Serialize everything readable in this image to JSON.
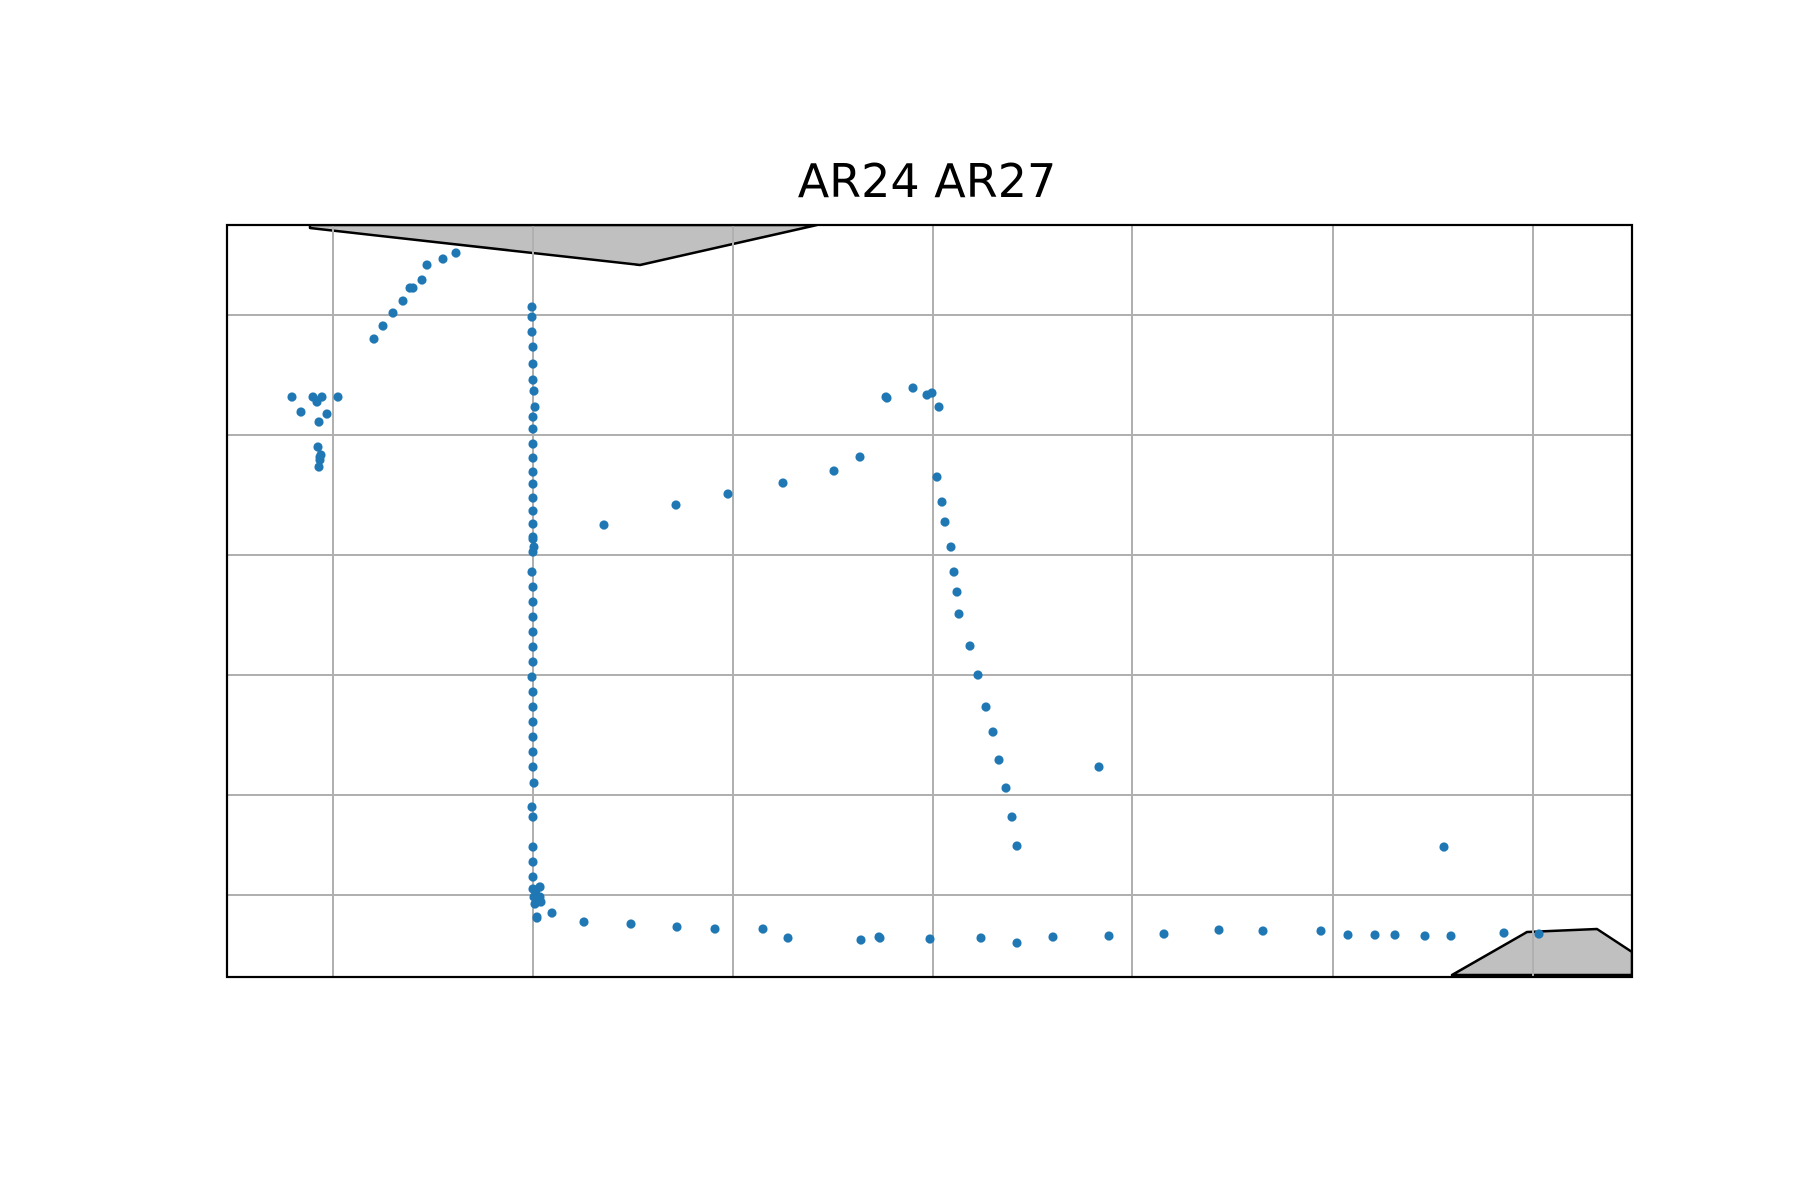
{
  "chart_data": {
    "type": "scatter",
    "title": "AR24 AR27",
    "xlim": [
      0,
      1405
    ],
    "ylim": [
      0,
      750
    ],
    "grid": true,
    "grid_x": [
      106,
      306,
      506,
      706,
      905,
      1106,
      1306
    ],
    "grid_y": [
      90,
      210,
      330,
      450,
      570,
      670
    ],
    "colors": {
      "points": "#1f77b4",
      "land_fill": "#c0c0c0",
      "land_edge": "#000000",
      "grid": "#b0b0b0",
      "frame": "#000000"
    },
    "land": [
      {
        "points": [
          [
            83,
            0
          ],
          [
            413,
            0
          ],
          [
            590,
            0
          ],
          [
            413,
            40
          ],
          [
            83,
            3
          ]
        ]
      },
      {
        "points": [
          [
            1225,
            750
          ],
          [
            1300,
            707
          ],
          [
            1370,
            704
          ],
          [
            1405,
            727
          ],
          [
            1405,
            750
          ]
        ]
      }
    ],
    "series": [
      {
        "x": [
          65,
          74,
          86,
          90,
          92,
          91,
          93,
          93,
          92,
          94,
          95,
          100,
          111,
          147,
          156,
          166,
          176,
          183,
          186,
          195,
          200,
          216,
          229,
          305,
          305,
          305,
          306,
          306,
          306,
          307,
          308,
          306,
          306,
          306,
          306,
          306,
          306,
          306,
          306,
          306,
          306,
          306,
          305,
          306,
          306,
          306,
          306,
          306,
          306,
          305,
          306,
          306,
          306,
          306,
          306,
          306,
          307,
          305,
          306,
          306,
          306,
          306,
          307,
          308,
          310,
          313,
          314,
          310,
          309,
          313,
          306,
          307,
          306,
          377,
          449,
          501,
          556,
          607,
          633,
          659,
          660,
          686,
          700,
          705,
          712,
          710,
          715,
          718,
          724,
          727,
          730,
          732,
          743,
          751,
          759,
          766,
          772,
          779,
          785,
          790,
          872,
          313,
          325,
          357,
          404,
          450,
          488,
          536,
          561,
          634,
          652,
          653,
          703,
          754,
          790,
          826,
          882,
          937,
          992,
          1036,
          1094,
          1121,
          1148,
          1168,
          1198,
          1224,
          1277,
          1312,
          1217
        ],
        "y": [
          580,
          565,
          580,
          575,
          555,
          530,
          520,
          517,
          510,
          522,
          580,
          563,
          580,
          638,
          651,
          664,
          676,
          689,
          689,
          697,
          712,
          718,
          724,
          670,
          660,
          645,
          630,
          613,
          597,
          586,
          570,
          560,
          548,
          533,
          519,
          505,
          493,
          479,
          466,
          453,
          438,
          425,
          405,
          390,
          375,
          360,
          345,
          330,
          315,
          300,
          285,
          270,
          255,
          240,
          225,
          210,
          194,
          170,
          160,
          130,
          115,
          100,
          80,
          73,
          60,
          80,
          75,
          59,
          87,
          90,
          88,
          430,
          440,
          452,
          472,
          483,
          494,
          506,
          520,
          580,
          579,
          589,
          582,
          584,
          570,
          500,
          475,
          455,
          430,
          405,
          385,
          363,
          331,
          302,
          270,
          245,
          217,
          189,
          160,
          131,
          210,
          90,
          64,
          55,
          53,
          50,
          48,
          48,
          39,
          37,
          40,
          39,
          38,
          39,
          34,
          40,
          41,
          43,
          47,
          46,
          46,
          42,
          42,
          42,
          41,
          41,
          44,
          43,
          130
        ],
        "mapped_y": "from_top_inverted"
      }
    ]
  }
}
